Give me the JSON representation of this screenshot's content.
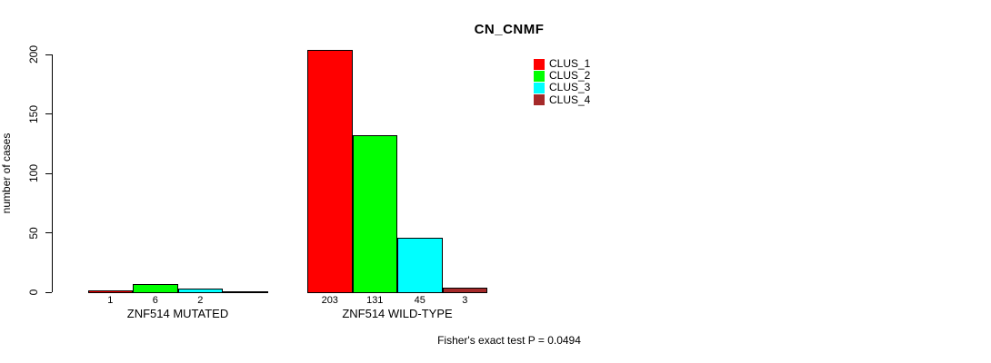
{
  "chart_data": {
    "type": "bar",
    "title": "CN_CNMF",
    "ylabel": "number of cases",
    "xlabel": "",
    "ylim": [
      0,
      200
    ],
    "yticks": [
      0,
      50,
      100,
      150,
      200
    ],
    "grid": false,
    "legend_position": "top-right",
    "bar_border_color": "#000000",
    "series": [
      {
        "name": "CLUS_1",
        "color": "#FF0000",
        "values": [
          1,
          203
        ]
      },
      {
        "name": "CLUS_2",
        "color": "#00FF00",
        "values": [
          6,
          131
        ]
      },
      {
        "name": "CLUS_3",
        "color": "#00FFFF",
        "values": [
          2,
          45
        ]
      },
      {
        "name": "CLUS_4",
        "color": "#A52A2A",
        "values": [
          0,
          3
        ]
      }
    ],
    "categories": [
      "ZNF514 MUTATED",
      "ZNF514 WILD-TYPE"
    ],
    "groups": [
      {
        "label": "ZNF514 MUTATED",
        "values": [
          1,
          6,
          2,
          0
        ],
        "bar_labels": [
          "1",
          "6",
          "2",
          ""
        ]
      },
      {
        "label": "ZNF514 WILD-TYPE",
        "values": [
          203,
          131,
          45,
          3
        ],
        "bar_labels": [
          "203",
          "131",
          "45",
          "3"
        ]
      }
    ],
    "annotation": "Fisher's exact test P = 0.0494"
  }
}
